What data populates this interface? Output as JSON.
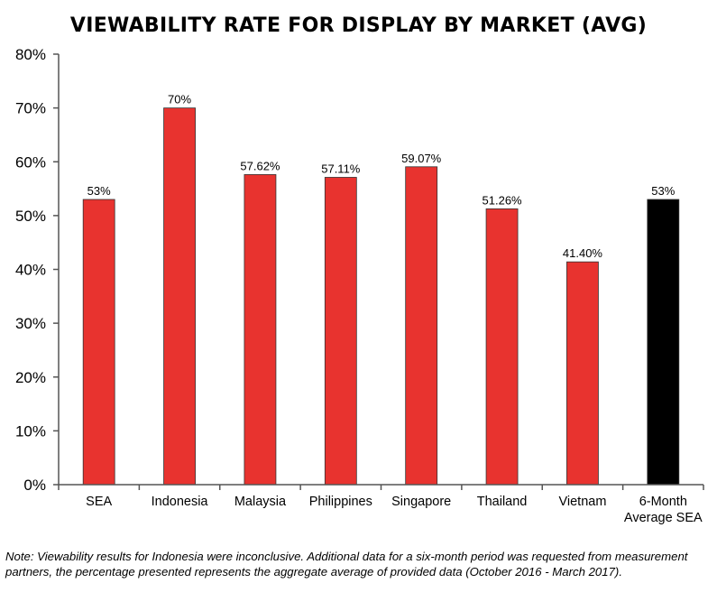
{
  "chart_data": {
    "type": "bar",
    "title": "VIEWABILITY RATE FOR DISPLAY BY MARKET (AVG)",
    "categories": [
      "SEA",
      "Indonesia",
      "Malaysia",
      "Philippines",
      "Singapore",
      "Thailand",
      "Vietnam",
      "6-Month Average SEA"
    ],
    "category_lines": [
      [
        "SEA"
      ],
      [
        "Indonesia"
      ],
      [
        "Malaysia"
      ],
      [
        "Philippines"
      ],
      [
        "Singapore"
      ],
      [
        "Thailand"
      ],
      [
        "Vietnam"
      ],
      [
        "6-Month",
        "Average SEA"
      ]
    ],
    "values": [
      53,
      70,
      57.62,
      57.11,
      59.07,
      51.26,
      41.4,
      53
    ],
    "value_labels": [
      "53%",
      "70%",
      "57.62%",
      "57.11%",
      "59.07%",
      "51.26%",
      "41.40%",
      "53%"
    ],
    "bar_colors": [
      "#e8332f",
      "#e8332f",
      "#e8332f",
      "#e8332f",
      "#e8332f",
      "#e8332f",
      "#e8332f",
      "#000000"
    ],
    "ylim": [
      0,
      80
    ],
    "yticks": [
      0,
      10,
      20,
      30,
      40,
      50,
      60,
      70,
      80
    ],
    "ytick_labels": [
      "0%",
      "10%",
      "20%",
      "30%",
      "40%",
      "50%",
      "60%",
      "70%",
      "80%"
    ],
    "grid": false,
    "xlabel": "",
    "ylabel": ""
  },
  "note": "Note: Viewability results for Indonesia were inconclusive. Additional data for a six-month period was requested from measurement partners, the percentage presented represents the aggregate average of provided data (October 2016 - March 2017)."
}
